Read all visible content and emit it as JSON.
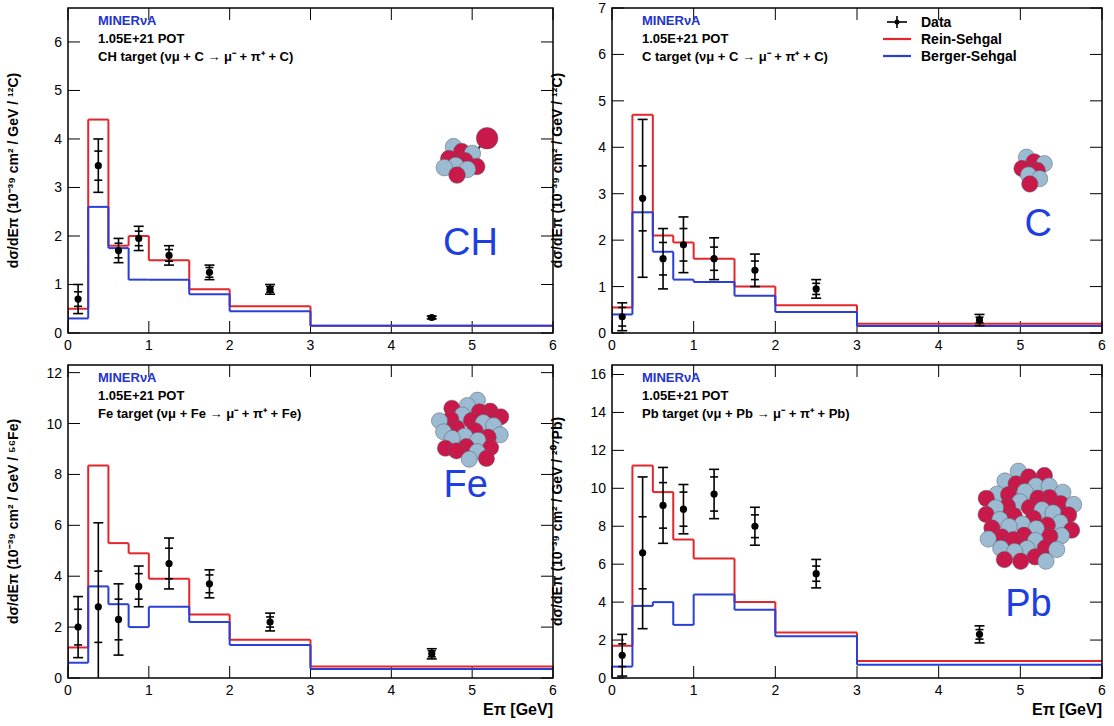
{
  "chart_data": [
    {
      "type": "step",
      "title": "MINERνA",
      "subtitle": "1.05E+21 POT",
      "annotations": [
        "CH target  (νμ + C → μ⁻ + π⁺ + C)",
        "CH"
      ],
      "ylabel": "dσ/dEπ (10⁻³⁹ cm² / GeV / ¹²C)",
      "xlim": [
        0,
        6
      ],
      "xticks": [
        0,
        1,
        2,
        3,
        4,
        5,
        6
      ],
      "ylim": [
        0,
        6.7
      ],
      "yticks": [
        0,
        1,
        2,
        3,
        4,
        5,
        6
      ],
      "bins": [
        0,
        0.25,
        0.5,
        0.75,
        1,
        1.5,
        2,
        3,
        6
      ],
      "x": [
        0.125,
        0.375,
        0.625,
        0.875,
        1.25,
        1.75,
        2.5,
        4.5
      ],
      "series": [
        {
          "name": "Data",
          "type": "scatter",
          "marker": "circle",
          "color": "#000000",
          "values": [
            0.7,
            3.45,
            1.7,
            1.95,
            1.6,
            1.25,
            0.9,
            0.32
          ],
          "errors": [
            0.3,
            0.55,
            0.25,
            0.25,
            0.2,
            0.15,
            0.1,
            0.03
          ],
          "errors_stat": [
            0.15,
            0.3,
            0.15,
            0.15,
            0.12,
            0.1,
            0.06,
            0.02
          ]
        },
        {
          "name": "Rein-Sehgal",
          "type": "step",
          "color": "#e3262b",
          "values": [
            0.5,
            4.4,
            1.8,
            2.0,
            1.5,
            0.9,
            0.55,
            0.15
          ]
        },
        {
          "name": "Berger-Sehgal",
          "type": "step",
          "color": "#2a3ed8",
          "values": [
            0.3,
            2.6,
            1.75,
            1.1,
            1.1,
            0.8,
            0.45,
            0.15
          ]
        }
      ]
    },
    {
      "type": "step",
      "title": "MINERνA",
      "subtitle": "1.05E+21 POT",
      "annotations": [
        "C target  (νμ + C → μ⁻ + π⁺ + C)",
        "C"
      ],
      "ylabel": "dσ/dEπ (10⁻³⁹ cm² / GeV / ¹²C)",
      "xlim": [
        0,
        6
      ],
      "xticks": [
        0,
        1,
        2,
        3,
        4,
        5,
        6
      ],
      "ylim": [
        0,
        7
      ],
      "yticks": [
        0,
        1,
        2,
        3,
        4,
        5,
        6,
        7
      ],
      "legend": "top-right",
      "bins": [
        0,
        0.25,
        0.5,
        0.75,
        1,
        1.5,
        2,
        3,
        6
      ],
      "x": [
        0.125,
        0.375,
        0.625,
        0.875,
        1.25,
        1.75,
        2.5,
        4.5
      ],
      "series": [
        {
          "name": "Data",
          "type": "scatter",
          "marker": "circle",
          "color": "#000000",
          "values": [
            0.35,
            2.9,
            1.6,
            1.9,
            1.6,
            1.35,
            0.95,
            0.28
          ],
          "errors": [
            0.3,
            1.7,
            0.65,
            0.6,
            0.45,
            0.35,
            0.2,
            0.12
          ],
          "errors_stat": [
            0.2,
            0.7,
            0.35,
            0.35,
            0.25,
            0.2,
            0.12,
            0.06
          ]
        },
        {
          "name": "Rein-Sehgal",
          "type": "step",
          "color": "#e3262b",
          "values": [
            0.55,
            4.7,
            2.1,
            1.95,
            1.6,
            1.0,
            0.6,
            0.2
          ]
        },
        {
          "name": "Berger-Sehgal",
          "type": "step",
          "color": "#2a3ed8",
          "values": [
            0.4,
            2.6,
            1.75,
            1.15,
            1.1,
            0.8,
            0.45,
            0.15
          ]
        }
      ]
    },
    {
      "type": "step",
      "title": "MINERνA",
      "subtitle": "1.05E+21 POT",
      "annotations": [
        "Fe target  (νμ + Fe → μ⁻ + π⁺ + Fe)",
        "Fe"
      ],
      "xlabel": "Eπ [GeV]",
      "ylabel": "dσ/dEπ (10⁻³⁹ cm² / GeV / ⁵⁶Fe)",
      "xlim": [
        0,
        6
      ],
      "xticks": [
        0,
        1,
        2,
        3,
        4,
        5,
        6
      ],
      "ylim": [
        0,
        12.3
      ],
      "yticks": [
        0,
        2,
        4,
        6,
        8,
        10,
        12
      ],
      "bins": [
        0,
        0.25,
        0.5,
        0.75,
        1,
        1.5,
        2,
        3,
        6
      ],
      "x": [
        0.125,
        0.375,
        0.625,
        0.875,
        1.25,
        1.75,
        2.5,
        4.5
      ],
      "series": [
        {
          "name": "Data",
          "type": "scatter",
          "marker": "circle",
          "color": "#000000",
          "values": [
            2.0,
            2.8,
            2.3,
            3.6,
            4.5,
            3.7,
            2.2,
            0.95
          ],
          "errors": [
            1.2,
            3.3,
            1.4,
            0.8,
            1.0,
            0.55,
            0.35,
            0.2
          ],
          "errors_stat": [
            0.7,
            1.4,
            0.8,
            0.5,
            0.6,
            0.35,
            0.2,
            0.12
          ]
        },
        {
          "name": "Rein-Sehgal",
          "type": "step",
          "color": "#e3262b",
          "values": [
            1.2,
            8.35,
            5.3,
            4.9,
            3.9,
            2.5,
            1.5,
            0.45
          ]
        },
        {
          "name": "Berger-Sehgal",
          "type": "step",
          "color": "#2a3ed8",
          "values": [
            0.6,
            3.6,
            2.9,
            2.0,
            2.8,
            2.2,
            1.3,
            0.35
          ]
        }
      ]
    },
    {
      "type": "step",
      "title": "MINERνA",
      "subtitle": "1.05E+21 POT",
      "annotations": [
        "Pb target  (νμ + Pb → μ⁻ + π⁺ + Pb)",
        "Pb"
      ],
      "xlabel": "Eπ [GeV]",
      "ylabel": "dσ/dEπ (10⁻³⁹ cm² / GeV / ²⁰⁷Pb)",
      "xlim": [
        0,
        6
      ],
      "xticks": [
        0,
        1,
        2,
        3,
        4,
        5,
        6
      ],
      "ylim": [
        0,
        16.5
      ],
      "yticks": [
        0,
        2,
        4,
        6,
        8,
        10,
        12,
        14,
        16
      ],
      "bins": [
        0,
        0.25,
        0.5,
        0.75,
        1,
        1.5,
        2,
        3,
        6
      ],
      "x": [
        0.125,
        0.375,
        0.625,
        0.875,
        1.25,
        1.75,
        2.5,
        4.5
      ],
      "series": [
        {
          "name": "Data",
          "type": "scatter",
          "marker": "circle",
          "color": "#000000",
          "values": [
            1.2,
            6.6,
            9.1,
            8.9,
            9.7,
            8.0,
            5.5,
            2.3
          ],
          "errors": [
            1.1,
            4.0,
            2.0,
            1.3,
            1.3,
            1.0,
            0.75,
            0.45
          ],
          "errors_stat": [
            0.6,
            1.9,
            1.2,
            0.9,
            0.9,
            0.6,
            0.4,
            0.25
          ]
        },
        {
          "name": "Rein-Sehgal",
          "type": "step",
          "color": "#e3262b",
          "values": [
            1.7,
            11.2,
            9.8,
            7.3,
            6.3,
            4.0,
            2.4,
            0.9
          ]
        },
        {
          "name": "Berger-Sehgal",
          "type": "step",
          "color": "#2a3ed8",
          "values": [
            0.6,
            3.8,
            4.0,
            2.8,
            4.4,
            3.6,
            2.2,
            0.7
          ]
        }
      ]
    }
  ]
}
